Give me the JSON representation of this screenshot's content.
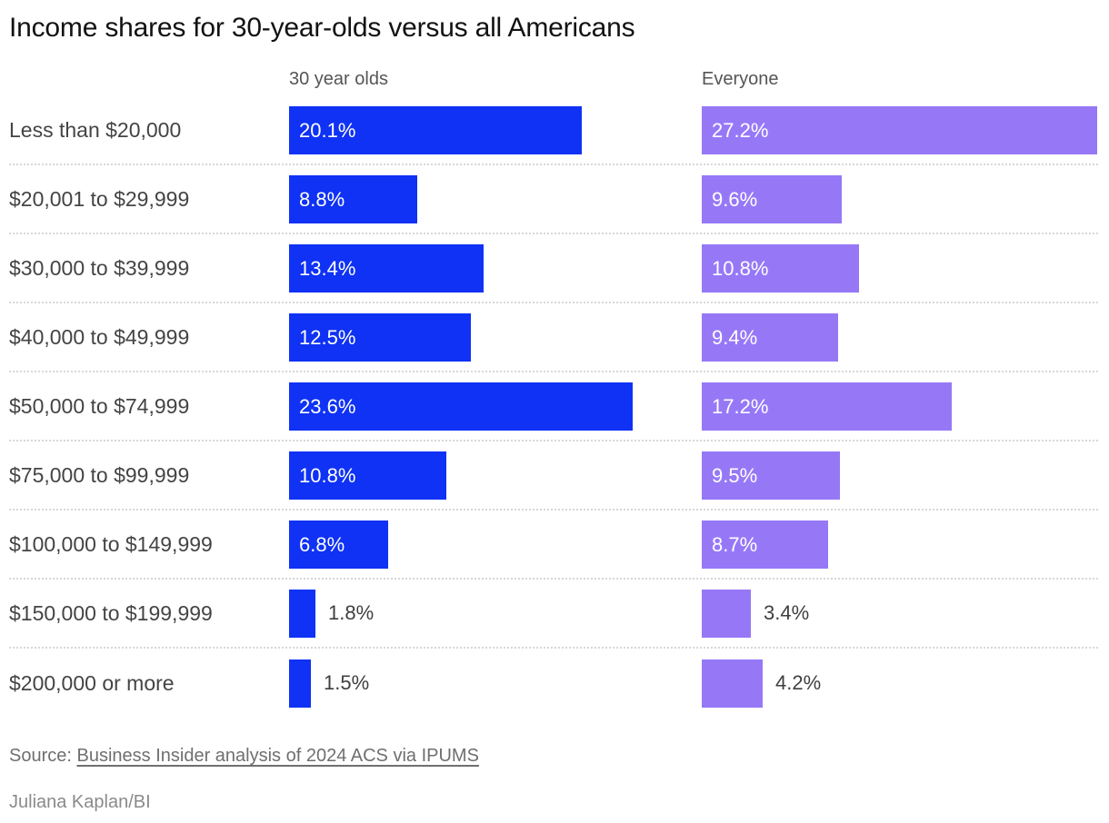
{
  "title": "Income shares for 30-year-olds versus all Americans",
  "chart_data": {
    "type": "bar",
    "orientation": "horizontal",
    "title": "Income shares for 30-year-olds versus all Americans",
    "categories": [
      "Less than $20,000",
      "$20,001 to $29,999",
      "$30,000 to $39,999",
      "$40,000 to $49,999",
      "$50,000 to $74,999",
      "$75,000 to $99,999",
      "$100,000 to $149,999",
      "$150,000 to $199,999",
      "$200,000 or more"
    ],
    "series": [
      {
        "name": "30 year olds",
        "color": "#0f32f5",
        "values": [
          20.1,
          8.8,
          13.4,
          12.5,
          23.6,
          10.8,
          6.8,
          1.8,
          1.5
        ]
      },
      {
        "name": "Everyone",
        "color": "#9678f7",
        "values": [
          27.2,
          9.6,
          10.8,
          9.4,
          17.2,
          9.5,
          8.7,
          3.4,
          4.2
        ]
      }
    ],
    "value_suffix": "%",
    "xlim": [
      0,
      28.4
    ],
    "grid": false,
    "legend_position": "column-headers",
    "separator_style": "dotted"
  },
  "headers": {
    "series1": "30 year olds",
    "series2": "Everyone"
  },
  "footer": {
    "source_prefix": "Source: ",
    "source_link": "Business Insider analysis of 2024 ACS via IPUMS",
    "byline": "Juliana Kaplan/BI"
  },
  "colors": {
    "series1_bar": "#0f32f5",
    "series2_bar": "#9678f7",
    "value_label_inside": "#ffffff",
    "value_label_outside": "#3f3f3f",
    "category_label": "#444444",
    "column_header": "#555555",
    "separator": "#d7d7d7"
  }
}
